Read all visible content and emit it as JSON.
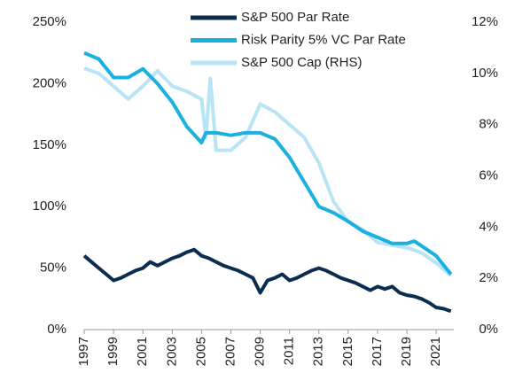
{
  "chart_data": {
    "type": "line",
    "xlim": [
      1997,
      2022.2
    ],
    "xticks": [
      1997,
      1999,
      2001,
      2003,
      2005,
      2007,
      2009,
      2011,
      2013,
      2015,
      2017,
      2019,
      2021
    ],
    "ylim": [
      0,
      250
    ],
    "yticks": [
      {
        "value": 0,
        "label": "0%"
      },
      {
        "value": 50,
        "label": "50%"
      },
      {
        "value": 100,
        "label": "100%"
      },
      {
        "value": 150,
        "label": "150%"
      },
      {
        "value": 200,
        "label": "200%"
      },
      {
        "value": 250,
        "label": "250%"
      }
    ],
    "y2lim": [
      0,
      12
    ],
    "y2ticks": [
      {
        "value": 0,
        "label": "0%"
      },
      {
        "value": 2,
        "label": "2%"
      },
      {
        "value": 4,
        "label": "4%"
      },
      {
        "value": 6,
        "label": "6%"
      },
      {
        "value": 8,
        "label": "8%"
      },
      {
        "value": 10,
        "label": "10%"
      },
      {
        "value": 12,
        "label": "12%"
      }
    ],
    "legend": "upper center",
    "series": [
      {
        "name": "S&P 500 Par Rate",
        "color": "#0b2d4f",
        "x": [
          1997,
          1997.5,
          1998,
          1998.5,
          1999,
          1999.5,
          2000,
          2000.5,
          2001,
          2001.5,
          2002,
          2002.5,
          2003,
          2003.5,
          2004,
          2004.5,
          2005,
          2005.5,
          2006,
          2006.5,
          2007,
          2007.5,
          2008,
          2008.5,
          2009,
          2009.5,
          2010,
          2010.5,
          2011,
          2011.5,
          2012,
          2012.5,
          2013,
          2013.5,
          2014,
          2014.5,
          2015,
          2015.5,
          2016,
          2016.5,
          2017,
          2017.5,
          2018,
          2018.5,
          2019,
          2019.5,
          2020,
          2020.5,
          2021,
          2021.5,
          2022
        ],
        "values": [
          60,
          55,
          50,
          45,
          40,
          42,
          45,
          48,
          50,
          55,
          52,
          55,
          58,
          60,
          63,
          65,
          60,
          58,
          55,
          52,
          50,
          48,
          45,
          42,
          30,
          40,
          42,
          45,
          40,
          42,
          45,
          48,
          50,
          48,
          45,
          42,
          40,
          38,
          35,
          32,
          35,
          33,
          35,
          30,
          28,
          27,
          25,
          22,
          18,
          17,
          15
        ]
      },
      {
        "name": "Risk Parity 5% VC Par Rate",
        "color": "#1ab0e0",
        "x": [
          1997,
          1998,
          1999,
          2000,
          2001,
          2002,
          2003,
          2004,
          2005,
          2005.3,
          2006,
          2007,
          2008,
          2009,
          2010,
          2011,
          2012,
          2013,
          2014,
          2015,
          2016,
          2017,
          2018,
          2019,
          2019.5,
          2020,
          2021,
          2022
        ],
        "values": [
          225,
          220,
          205,
          205,
          212,
          200,
          185,
          165,
          152,
          160,
          160,
          158,
          160,
          160,
          155,
          140,
          120,
          100,
          95,
          88,
          80,
          75,
          70,
          70,
          72,
          68,
          60,
          45
        ]
      },
      {
        "name": "S&P 500 Cap (RHS)",
        "color": "#b8e4f5",
        "axis": "y2",
        "x": [
          1997,
          1998,
          1999,
          2000,
          2001,
          2002,
          2003,
          2004,
          2005,
          2005.3,
          2005.6,
          2006,
          2007,
          2008,
          2009,
          2010,
          2011,
          2012,
          2013,
          2014,
          2015,
          2016,
          2017,
          2018,
          2019,
          2020,
          2021,
          2022
        ],
        "values": [
          10.2,
          10,
          9.5,
          9,
          9.5,
          10.1,
          9.5,
          9.3,
          9,
          7.5,
          9.8,
          7,
          7,
          7.5,
          8.8,
          8.5,
          8,
          7.5,
          6.5,
          5,
          4.2,
          3.9,
          3.4,
          3.3,
          3.2,
          3,
          2.6,
          2.1
        ]
      }
    ]
  }
}
